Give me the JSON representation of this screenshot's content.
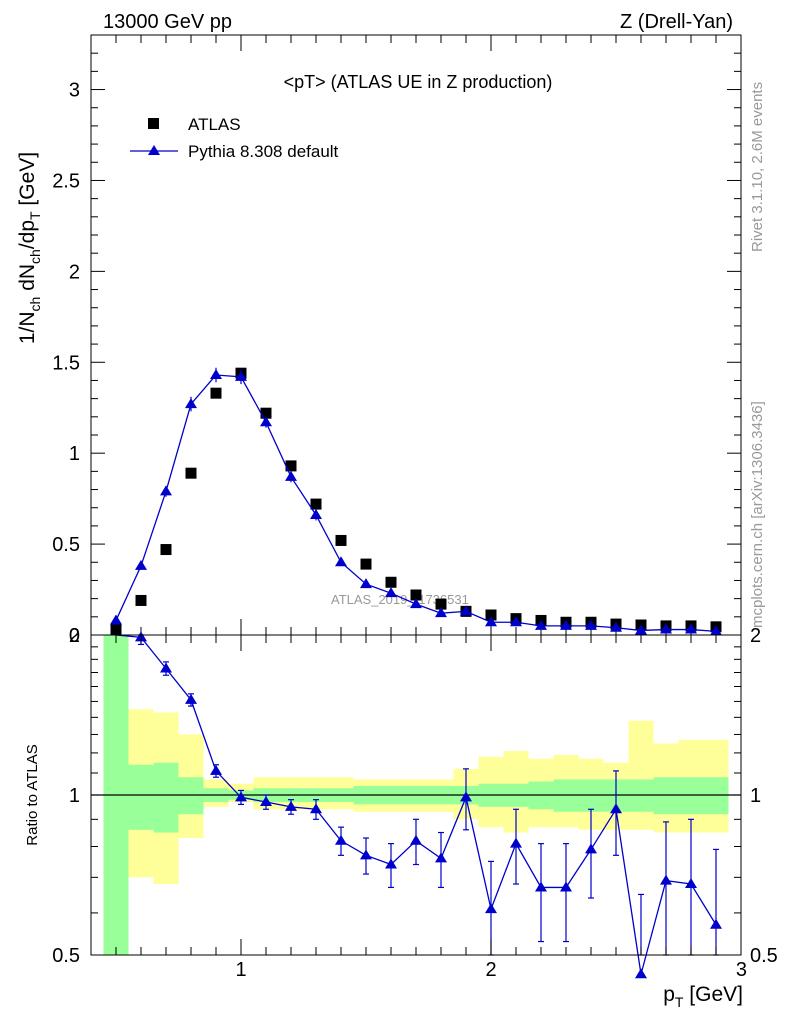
{
  "header": {
    "left": "13000 GeV pp",
    "right": "Z (Drell-Yan)"
  },
  "side": {
    "rivet": "Rivet 3.1.10,  2.6M events",
    "mcplots": "mcplots.cern.ch [arXiv:1306.3436]"
  },
  "chart_data": [
    {
      "type": "scatter",
      "title": "<pT> (ATLAS UE in Z production)",
      "xlabel": "p_T [GeV]",
      "ylabel": "1/N_ch dN_ch/dp_T [GeV]",
      "xlim": [
        0.4,
        3.0
      ],
      "ylim": [
        0,
        3.3
      ],
      "yticks": [
        "0",
        "0.5",
        "1",
        "1.5",
        "2",
        "2.5",
        "3"
      ],
      "legend_position": "top-left",
      "watermark": "ATLAS_2019_I1736531",
      "series": [
        {
          "name": "ATLAS",
          "marker": "square",
          "color": "#000000",
          "x": [
            0.5,
            0.6,
            0.7,
            0.8,
            0.9,
            1.0,
            1.1,
            1.2,
            1.3,
            1.4,
            1.5,
            1.6,
            1.7,
            1.8,
            1.9,
            2.0,
            2.1,
            2.2,
            2.3,
            2.4,
            2.5,
            2.6,
            2.7,
            2.8,
            2.9
          ],
          "y": [
            0.03,
            0.19,
            0.47,
            0.89,
            1.33,
            1.44,
            1.22,
            0.93,
            0.72,
            0.52,
            0.39,
            0.29,
            0.22,
            0.17,
            0.13,
            0.11,
            0.09,
            0.08,
            0.07,
            0.07,
            0.06,
            0.055,
            0.05,
            0.05,
            0.045
          ]
        },
        {
          "name": "Pythia 8.308 default",
          "marker": "triangle",
          "color": "#0000cc",
          "x": [
            0.5,
            0.6,
            0.7,
            0.8,
            0.9,
            1.0,
            1.1,
            1.2,
            1.3,
            1.4,
            1.5,
            1.6,
            1.7,
            1.8,
            1.9,
            2.0,
            2.1,
            2.2,
            2.3,
            2.4,
            2.5,
            2.6,
            2.7,
            2.8,
            2.9
          ],
          "y": [
            0.08,
            0.38,
            0.79,
            1.27,
            1.43,
            1.42,
            1.17,
            0.87,
            0.66,
            0.4,
            0.28,
            0.23,
            0.17,
            0.12,
            0.13,
            0.07,
            0.07,
            0.05,
            0.05,
            0.05,
            0.04,
            0.025,
            0.03,
            0.03,
            0.02
          ],
          "err": [
            0.01,
            0.02,
            0.03,
            0.04,
            0.04,
            0.04,
            0.03,
            0.03,
            0.03,
            0.02,
            0.02,
            0.02,
            0.01,
            0.01,
            0.01,
            0.01,
            0.01,
            0.01,
            0.01,
            0.01,
            0.01,
            0.01,
            0.01,
            0.01,
            0.01
          ]
        }
      ]
    },
    {
      "type": "line",
      "xlabel": "p_T [GeV]",
      "ylabel": "Ratio to ATLAS",
      "xlim": [
        0.4,
        3.0
      ],
      "ylim": [
        0.35,
        2.35
      ],
      "xticks": [
        "1",
        "2",
        "3"
      ],
      "yticks": [
        "0.5",
        "1",
        "2"
      ],
      "bands": {
        "edges": [
          0.45,
          0.55,
          0.65,
          0.75,
          0.85,
          0.95,
          1.05,
          1.15,
          1.25,
          1.35,
          1.45,
          1.55,
          1.65,
          1.75,
          1.85,
          1.95,
          2.05,
          2.15,
          2.25,
          2.35,
          2.45,
          2.55,
          2.65,
          2.75,
          2.85,
          2.95
        ],
        "stat_lo": [
          0.35,
          0.86,
          0.85,
          0.92,
          0.97,
          0.98,
          0.97,
          0.97,
          0.97,
          0.97,
          0.96,
          0.96,
          0.96,
          0.96,
          0.96,
          0.95,
          0.95,
          0.94,
          0.93,
          0.93,
          0.93,
          0.93,
          0.92,
          0.92,
          0.92
        ],
        "stat_hi": [
          2.0,
          1.14,
          1.15,
          1.08,
          1.03,
          1.02,
          1.03,
          1.03,
          1.03,
          1.03,
          1.04,
          1.04,
          1.04,
          1.04,
          1.04,
          1.05,
          1.05,
          1.06,
          1.07,
          1.07,
          1.07,
          1.07,
          1.08,
          1.08,
          1.08
        ],
        "syst_lo": [
          0.35,
          0.7,
          0.68,
          0.83,
          0.95,
          0.97,
          0.94,
          0.94,
          0.94,
          0.94,
          0.93,
          0.93,
          0.93,
          0.93,
          0.9,
          0.87,
          0.85,
          0.87,
          0.87,
          0.86,
          0.86,
          0.86,
          0.85,
          0.85,
          0.85
        ],
        "syst_hi": [
          2.35,
          1.45,
          1.43,
          1.3,
          1.07,
          1.05,
          1.08,
          1.08,
          1.08,
          1.08,
          1.07,
          1.07,
          1.07,
          1.07,
          1.12,
          1.18,
          1.21,
          1.17,
          1.19,
          1.17,
          1.15,
          1.38,
          1.25,
          1.27,
          1.27
        ]
      },
      "series": [
        {
          "name": "Pythia 8.308 default",
          "color": "#0000cc",
          "x": [
            0.6,
            0.7,
            0.8,
            0.9,
            1.0,
            1.1,
            1.2,
            1.3,
            1.4,
            1.5,
            1.6,
            1.7,
            1.8,
            1.9,
            2.0,
            2.1,
            2.2,
            2.3,
            2.4,
            2.5,
            2.6,
            2.7,
            2.8,
            2.9
          ],
          "y": [
            1.98,
            1.73,
            1.51,
            1.11,
            0.99,
            0.97,
            0.95,
            0.94,
            0.82,
            0.77,
            0.74,
            0.82,
            0.76,
            0.99,
            0.61,
            0.81,
            0.67,
            0.67,
            0.79,
            0.94,
            0.46,
            0.69,
            0.68,
            0.57
          ],
          "err": [
            0.06,
            0.05,
            0.04,
            0.03,
            0.03,
            0.03,
            0.03,
            0.04,
            0.05,
            0.06,
            0.07,
            0.08,
            0.09,
            0.13,
            0.14,
            0.13,
            0.14,
            0.14,
            0.15,
            0.17,
            0.19,
            0.2,
            0.22,
            0.22
          ]
        }
      ]
    }
  ]
}
